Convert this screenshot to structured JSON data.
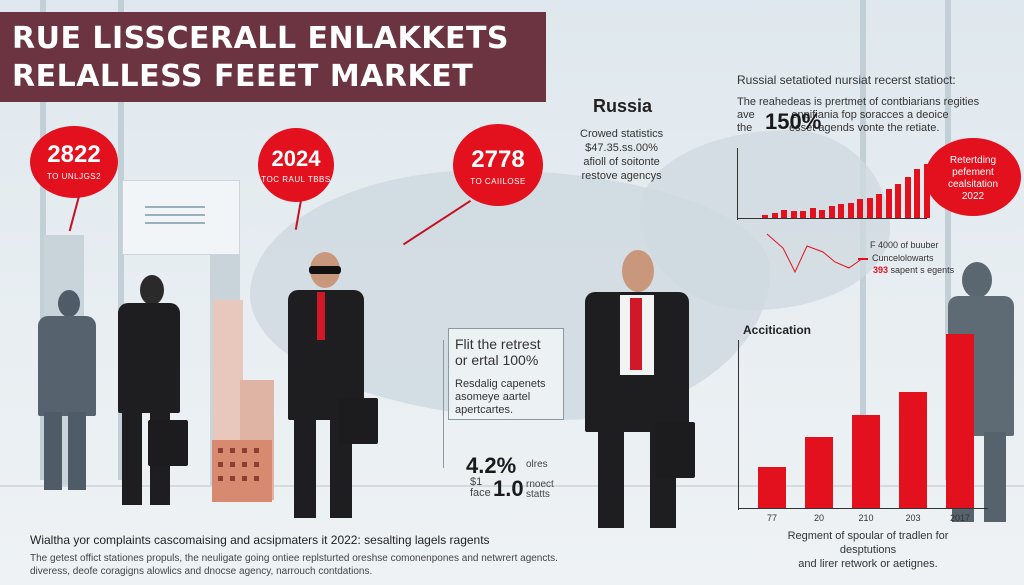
{
  "title": {
    "line1": "RUE LISSCERALL ENLAKKETS",
    "line2": "RELALLESS FEEET MARKET"
  },
  "bubbles": [
    {
      "value": "2822",
      "caption": "TO UNLJGS2"
    },
    {
      "value": "2024",
      "caption": "TOC RAUL TBBS"
    },
    {
      "value": "2778",
      "caption": "TO CAIILOSE"
    }
  ],
  "russia": {
    "title": "Russia",
    "line1": "Crowed statistics",
    "line2": "$47.35.ss.00%",
    "line3": "afioll of soitonte",
    "line4": "restove agencys"
  },
  "top_right": {
    "heading": "Russial setatioted nursiat recerst statioct:",
    "desc_line1": "The reahedeas is prertmet of contbiarians regities",
    "desc_line2": "ave            enpifiania fop soracces a deoice",
    "desc_line3": "the            esset agends vonte the retiate.",
    "big_percent": "150%"
  },
  "callout": {
    "line1": "Retertding",
    "line2": "pefement",
    "line3": "cealsitation",
    "line4": "2022"
  },
  "legend": {
    "item1": "F 4000 of buuber",
    "item2": "Cuncelolowarts",
    "item3_num": "393",
    "item3_text": "sapent s egents"
  },
  "info_box": {
    "title1": "Flit the retrest",
    "title2": "or ertal 100%",
    "body1": "Resdalig capenets",
    "body2": "asomeye aartel",
    "body3": "apertcartes."
  },
  "stat_percent": {
    "value": "4.2%",
    "note": "olres"
  },
  "stat_money": {
    "prefix1": "$1",
    "prefix2": "face",
    "value": "1.0",
    "note1": "rnoect",
    "note2": "statts"
  },
  "accel_chart": {
    "title": "Accitication"
  },
  "chart_data": [
    {
      "type": "bar",
      "categories": [
        "",
        "",
        "",
        "",
        "",
        "",
        "",
        "",
        "",
        "",
        "",
        "",
        "",
        "",
        "",
        "",
        "",
        ""
      ],
      "values": [
        2,
        3,
        5,
        4,
        4,
        6,
        5,
        7,
        8,
        9,
        11,
        12,
        14,
        17,
        20,
        24,
        29,
        32
      ],
      "ylim": [
        0,
        40
      ]
    },
    {
      "type": "bar",
      "categories": [
        "77",
        "20",
        "210",
        "203",
        "2017"
      ],
      "values": [
        23,
        40,
        52,
        65,
        98
      ],
      "ylim": [
        0,
        100
      ],
      "caption_line1": "Regment of spoular of tradlen for desptutions",
      "caption_line2": "and lirer retwork or aetignes."
    }
  ],
  "bottom": {
    "line1": "Wialtha yor complaints cascomaising and acsipmaters it 2022: sesalting lagels ragents",
    "line2": "The getest offict stationes propuls, the neuligate going ontiee replsturted oreshse comonenpones and netwrert agencts.",
    "line3": "diveress, deofe coragigns alowlics and dnocse agency, narrouch contdations."
  },
  "colors": {
    "accent": "#e3101e",
    "title_bg": "#6b3440"
  }
}
